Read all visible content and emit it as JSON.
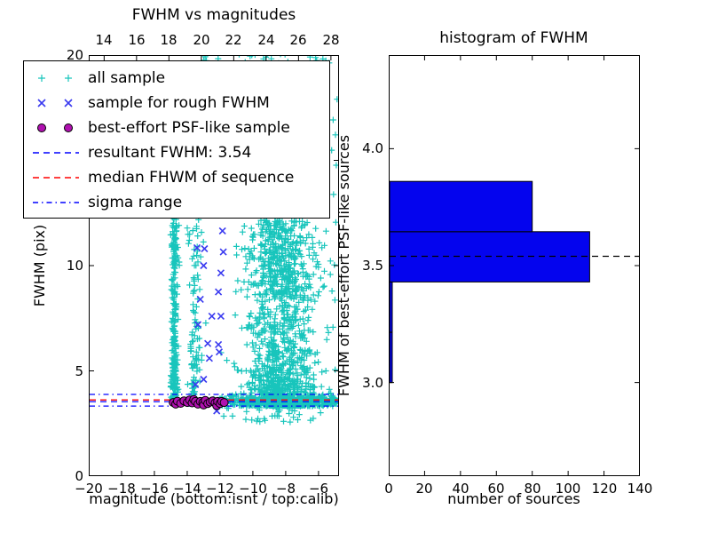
{
  "figure": {
    "background": "#ffffff"
  },
  "colors": {
    "all_sample": "#18c5bc",
    "rough_sample": "#3a3af0",
    "psf_sample_fill": "#b011b0",
    "psf_sample_edge": "#000000",
    "resultant_line": "#0000ff",
    "median_line": "#ff0000",
    "sigma_line": "#0000ff",
    "hist_bar_fill": "#0404ee",
    "hist_bar_edge": "#000000",
    "hist_dashed_line": "#000000",
    "axis": "#000000"
  },
  "legend": {
    "entries": [
      {
        "label": "all sample",
        "type": "marker",
        "marker": "plus",
        "color": "#18c5bc"
      },
      {
        "label": "sample for rough FWHM",
        "type": "marker",
        "marker": "x",
        "color": "#3a3af0"
      },
      {
        "label": "best-effort PSF-like sample",
        "type": "marker",
        "marker": "circle",
        "color": "#b011b0",
        "edge": "#000000"
      },
      {
        "label": "resultant FWHM: 3.54",
        "type": "line",
        "style": "dashed",
        "color": "#0000ff"
      },
      {
        "label": "median FHWM of sequence",
        "type": "line",
        "style": "dashed",
        "color": "#ff0000"
      },
      {
        "label": "sigma range",
        "type": "line",
        "style": "dashdot",
        "color": "#0000ff"
      }
    ]
  },
  "chart_data": [
    {
      "id": "fwhm_vs_magnitudes",
      "type": "scatter",
      "title": "FWHM vs magnitudes",
      "xlabel": "magnitude (bottom:isnt / top:calib)",
      "ylabel": "FWHM (pix)",
      "xlim": [
        -20,
        -4.75
      ],
      "ylim": [
        0,
        20
      ],
      "top_axis_lim": [
        13.05,
        28.5
      ],
      "xticks": [
        -20,
        -18,
        -16,
        -14,
        -12,
        -10,
        -8,
        -6
      ],
      "top_xticks": [
        14,
        16,
        18,
        20,
        22,
        24,
        26,
        28
      ],
      "yticks": [
        0,
        5,
        10,
        15,
        20
      ],
      "grid": false,
      "legend_position": "upper left",
      "series": [
        {
          "name": "all sample",
          "marker": "plus",
          "color": "#18c5bc",
          "note": "~2300 sources; clusters estimated from pixels, generated with seeded RNG",
          "clusters": [
            {
              "n": 240,
              "seed": 11,
              "x": {
                "normal": [
                  -14.78,
                  0.1
                ]
              },
              "y": {
                "pow": [
                  3.6,
                  8.5,
                  2.0
                ]
              }
            },
            {
              "n": 42,
              "seed": 22,
              "x": {
                "normal": [
                  -14.78,
                  0.12
                ]
              },
              "y": {
                "uniform": [
                  8.0,
                  13.0
                ]
              }
            },
            {
              "n": 110,
              "seed": 33,
              "x": {
                "normal": [
                  -13.5,
                  0.22
                ]
              },
              "y": {
                "pow": [
                  3.5,
                  9.0,
                  1.6
                ]
              }
            },
            {
              "n": 1250,
              "seed": 44,
              "x": {
                "normal": [
                  -8.2,
                  1.15
                ]
              },
              "y": {
                "pow": [
                  3.35,
                  8.8,
                  2.4
                ]
              }
            },
            {
              "n": 200,
              "seed": 55,
              "x": {
                "normal": [
                  -8.4,
                  0.95
                ]
              },
              "y": {
                "uniform": [
                  8.5,
                  12.2
                ]
              }
            },
            {
              "n": 330,
              "seed": 66,
              "x": {
                "uniform": [
                  -12.4,
                  -4.8
                ]
              },
              "y": {
                "normal": [
                  3.55,
                  0.13
                ]
              }
            },
            {
              "n": 60,
              "seed": 77,
              "x": {
                "normal": [
                  -8.6,
                  1.6
                ]
              },
              "y": {
                "uniform": [
                  12.2,
                  20.3
                ]
              }
            },
            {
              "n": 26,
              "seed": 88,
              "x": {
                "uniform": [
                  -13.2,
                  -5.2
                ]
              },
              "y": {
                "uniform": [
                  19.6,
                  20.3
                ]
              }
            },
            {
              "n": 30,
              "seed": 99,
              "x": {
                "normal": [
                  -8.5,
                  1.2
                ]
              },
              "y": {
                "uniform": [
                  2.55,
                  3.3
                ]
              }
            },
            {
              "n": 6,
              "seed": 12,
              "x": {
                "uniform": [
                  -5.15,
                  -4.8
                ]
              },
              "y": {
                "uniform": [
                  12.0,
                  18.5
                ]
              }
            }
          ]
        },
        {
          "name": "sample for rough FWHM",
          "marker": "x",
          "color": "#3a3af0",
          "points": [
            [
              -11.85,
              11.65
            ],
            [
              -12.95,
              10.8
            ],
            [
              -13.4,
              10.85
            ],
            [
              -11.8,
              10.65
            ],
            [
              -13.0,
              10.0
            ],
            [
              -11.95,
              9.65
            ],
            [
              -12.1,
              8.75
            ],
            [
              -13.2,
              8.4
            ],
            [
              -12.5,
              7.6
            ],
            [
              -11.95,
              7.6
            ],
            [
              -13.35,
              7.2
            ],
            [
              -12.75,
              6.3
            ],
            [
              -12.1,
              6.25
            ],
            [
              -12.65,
              5.6
            ],
            [
              -12.05,
              5.9
            ],
            [
              -13.0,
              4.6
            ],
            [
              -13.5,
              4.35
            ],
            [
              -12.2,
              3.1
            ]
          ]
        },
        {
          "name": "best-effort PSF-like sample",
          "marker": "circle",
          "color": "#b011b0",
          "edge": "#000000",
          "points": [
            [
              -14.85,
              3.5
            ],
            [
              -14.7,
              3.42
            ],
            [
              -14.6,
              3.56
            ],
            [
              -14.4,
              3.46
            ],
            [
              -14.2,
              3.58
            ],
            [
              -14.0,
              3.5
            ],
            [
              -13.85,
              3.62
            ],
            [
              -13.7,
              3.48
            ],
            [
              -13.6,
              3.64
            ],
            [
              -13.5,
              3.55
            ],
            [
              -13.35,
              3.42
            ],
            [
              -13.2,
              3.55
            ],
            [
              -13.05,
              3.5
            ],
            [
              -13.0,
              3.38
            ],
            [
              -12.9,
              3.6
            ],
            [
              -12.75,
              3.45
            ],
            [
              -12.6,
              3.52
            ],
            [
              -12.45,
              3.58
            ],
            [
              -12.3,
              3.48
            ],
            [
              -12.2,
              3.35
            ],
            [
              -12.15,
              3.55
            ],
            [
              -12.0,
              3.45
            ],
            [
              -11.9,
              3.55
            ],
            [
              -11.75,
              3.5
            ]
          ]
        }
      ],
      "hlines": [
        {
          "name": "resultant FWHM",
          "value": 3.54,
          "style": "dashed",
          "color": "#0000ff"
        },
        {
          "name": "median FHWM of sequence",
          "value": 3.62,
          "style": "dashed",
          "color": "#ff0000"
        },
        {
          "name": "sigma range lower",
          "value": 3.33,
          "style": "dashdot",
          "color": "#0000ff"
        },
        {
          "name": "sigma range upper",
          "value": 3.88,
          "style": "dashdot",
          "color": "#0000ff"
        }
      ]
    },
    {
      "id": "histogram_of_fwhm",
      "type": "bar",
      "orientation": "horizontal",
      "title": "histogram of FWHM",
      "xlabel": "number of sources",
      "ylabel": "FWHM of best-effort PSF-like sources",
      "xlim": [
        0,
        140
      ],
      "ylim": [
        2.6,
        4.4
      ],
      "xticks": [
        0,
        20,
        40,
        60,
        80,
        100,
        120,
        140
      ],
      "yticks": [
        {
          "v": 3.0,
          "label": "3.0"
        },
        {
          "v": 3.5,
          "label": "3.5"
        },
        {
          "v": 4.0,
          "label": "4.0"
        }
      ],
      "grid": false,
      "bin_edges": [
        3.0,
        3.215,
        3.43,
        3.645,
        3.86
      ],
      "counts": [
        2,
        2,
        112,
        80
      ],
      "dashed_line_value": 3.54
    }
  ]
}
